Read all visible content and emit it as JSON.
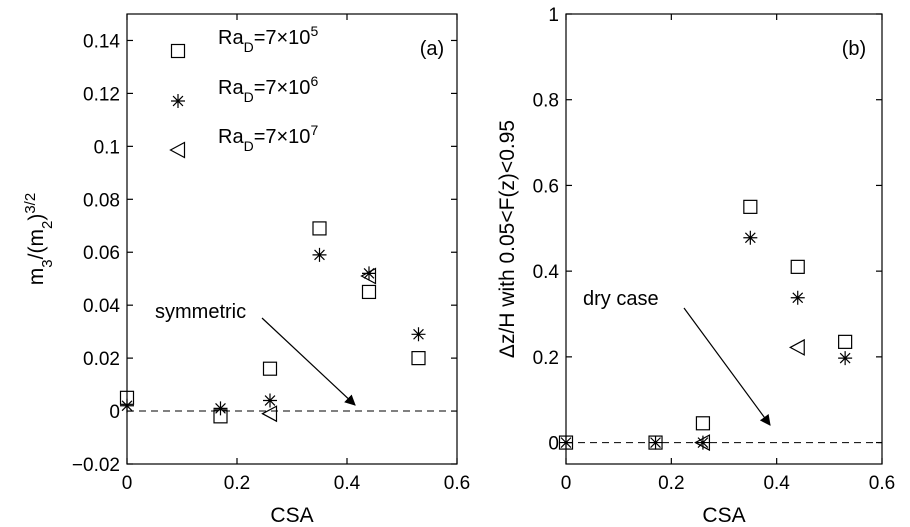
{
  "figure": {
    "background": "#ffffff",
    "marker_color": "#000000"
  },
  "chart_data": [
    {
      "type": "scatter",
      "panel_label": "(a)",
      "xlabel": "CSA",
      "ylabel_html": "m<tspan baseline-shift=\"sub\" font-size=\"15\">3</tspan>/(m<tspan baseline-shift=\"sub\" font-size=\"15\">2</tspan>)<tspan baseline-shift=\"super\" font-size=\"15\">3/2</tspan>",
      "xlim": [
        0,
        0.6
      ],
      "ylim": [
        -0.02,
        0.15
      ],
      "xticks": [
        "0",
        "0.2",
        "0.4",
        "0.6"
      ],
      "xtick_values": [
        0,
        0.2,
        0.4,
        0.6
      ],
      "yticks": [
        "−0.02",
        "0",
        "0.02",
        "0.04",
        "0.06",
        "0.08",
        "0.1",
        "0.12",
        "0.14"
      ],
      "ytick_values": [
        -0.02,
        0,
        0.02,
        0.04,
        0.06,
        0.08,
        0.1,
        0.12,
        0.14
      ],
      "grid": false,
      "legend_position": "top-left",
      "reference_line": {
        "y": 0,
        "style": "dashed",
        "annotation": "symmetric"
      },
      "series": [
        {
          "name": "Ra<tspan baseline-shift=\"sub\" font-size=\"14\">D</tspan>=7×10<tspan baseline-shift=\"super\" font-size=\"14\">5</tspan>",
          "marker": "square",
          "points": [
            [
              0,
              0.005
            ],
            [
              0.17,
              -0.002
            ],
            [
              0.26,
              0.016
            ],
            [
              0.35,
              0.069
            ],
            [
              0.44,
              0.045
            ],
            [
              0.53,
              0.02
            ]
          ]
        },
        {
          "name": "Ra<tspan baseline-shift=\"sub\" font-size=\"14\">D</tspan>=7×10<tspan baseline-shift=\"super\" font-size=\"14\">6</tspan>",
          "marker": "asterisk",
          "points": [
            [
              0,
              0.002
            ],
            [
              0.17,
              0.001
            ],
            [
              0.26,
              0.004
            ],
            [
              0.35,
              0.059
            ],
            [
              0.44,
              0.052
            ],
            [
              0.53,
              0.029
            ]
          ]
        },
        {
          "name": "Ra<tspan baseline-shift=\"sub\" font-size=\"14\">D</tspan>=7×10<tspan baseline-shift=\"super\" font-size=\"14\">7</tspan>",
          "marker": "triangle-left",
          "points": [
            [
              0.26,
              -0.001
            ],
            [
              0.44,
              0.051
            ]
          ]
        }
      ]
    },
    {
      "type": "scatter",
      "panel_label": "(b)",
      "xlabel": "CSA",
      "ylabel_html": "Δz/H with 0.05&lt;F(z)&lt;0.95",
      "xlim": [
        0,
        0.6
      ],
      "ylim": [
        -0.05,
        1.0
      ],
      "xticks": [
        "0",
        "0.2",
        "0.4",
        "0.6"
      ],
      "xtick_values": [
        0,
        0.2,
        0.4,
        0.6
      ],
      "yticks": [
        "0",
        "0.2",
        "0.4",
        "0.6",
        "0.8",
        "1"
      ],
      "ytick_values": [
        0,
        0.2,
        0.4,
        0.6,
        0.8,
        1.0
      ],
      "grid": false,
      "legend_position": "none",
      "reference_line": {
        "y": 0,
        "style": "dashed",
        "annotation": "dry case"
      },
      "series": [
        {
          "name": "",
          "marker": "square",
          "points": [
            [
              0,
              0
            ],
            [
              0.17,
              0
            ],
            [
              0.26,
              0.045
            ],
            [
              0.35,
              0.55
            ],
            [
              0.44,
              0.41
            ],
            [
              0.53,
              0.235
            ]
          ]
        },
        {
          "name": "",
          "marker": "asterisk",
          "points": [
            [
              0,
              0
            ],
            [
              0.17,
              0
            ],
            [
              0.26,
              0
            ],
            [
              0.35,
              0.478
            ],
            [
              0.44,
              0.338
            ],
            [
              0.53,
              0.197
            ]
          ]
        },
        {
          "name": "",
          "marker": "triangle-left",
          "points": [
            [
              0.26,
              0
            ],
            [
              0.44,
              0.222
            ]
          ]
        }
      ]
    }
  ]
}
